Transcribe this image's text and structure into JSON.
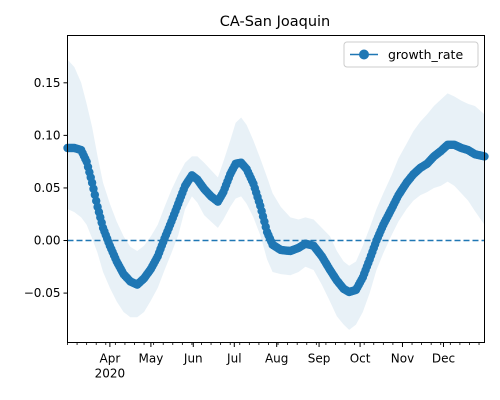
{
  "chart_data": {
    "type": "line",
    "title": "CA-San Joaquin",
    "xlabel": "",
    "ylabel": "",
    "x_range": [
      "2020-03-01",
      "2020-12-31"
    ],
    "ylim": [
      -0.097,
      0.195
    ],
    "y_ticks": [
      -0.05,
      0.0,
      0.05,
      0.1,
      0.15
    ],
    "y_tick_labels": [
      "−0.05",
      "0.00",
      "0.05",
      "0.10",
      "0.15"
    ],
    "x_ticks": [
      {
        "date": "2020-04-01",
        "label": "Apr",
        "sublabel": "2020"
      },
      {
        "date": "2020-05-01",
        "label": "May",
        "sublabel": ""
      },
      {
        "date": "2020-06-01",
        "label": "Jun",
        "sublabel": ""
      },
      {
        "date": "2020-07-01",
        "label": "Jul",
        "sublabel": ""
      },
      {
        "date": "2020-08-01",
        "label": "Aug",
        "sublabel": ""
      },
      {
        "date": "2020-09-01",
        "label": "Sep",
        "sublabel": ""
      },
      {
        "date": "2020-10-01",
        "label": "Oct",
        "sublabel": ""
      },
      {
        "date": "2020-11-01",
        "label": "Nov",
        "sublabel": ""
      },
      {
        "date": "2020-12-01",
        "label": "Dec",
        "sublabel": ""
      }
    ],
    "reference_line": {
      "y": 0,
      "style": "dashed"
    },
    "legend": {
      "position": "upper right",
      "entries": [
        "growth_rate"
      ]
    },
    "grid": false,
    "series": [
      {
        "name": "growth_rate",
        "color": "#1f77b4",
        "marker": "circle",
        "points": [
          {
            "x": "2020-03-01",
            "y": 0.088,
            "lo": 0.03,
            "hi": 0.172
          },
          {
            "x": "2020-03-06",
            "y": 0.088,
            "lo": 0.027,
            "hi": 0.165
          },
          {
            "x": "2020-03-11",
            "y": 0.086,
            "lo": 0.022,
            "hi": 0.15
          },
          {
            "x": "2020-03-15",
            "y": 0.075,
            "lo": 0.015,
            "hi": 0.13
          },
          {
            "x": "2020-03-19",
            "y": 0.055,
            "lo": 0.002,
            "hi": 0.108
          },
          {
            "x": "2020-03-23",
            "y": 0.032,
            "lo": -0.012,
            "hi": 0.08
          },
          {
            "x": "2020-03-27",
            "y": 0.012,
            "lo": -0.03,
            "hi": 0.055
          },
          {
            "x": "2020-04-01",
            "y": -0.005,
            "lo": -0.045,
            "hi": 0.035
          },
          {
            "x": "2020-04-06",
            "y": -0.02,
            "lo": -0.058,
            "hi": 0.018
          },
          {
            "x": "2020-04-11",
            "y": -0.032,
            "lo": -0.068,
            "hi": 0.004
          },
          {
            "x": "2020-04-16",
            "y": -0.039,
            "lo": -0.073,
            "hi": -0.006
          },
          {
            "x": "2020-04-21",
            "y": -0.042,
            "lo": -0.073,
            "hi": -0.01
          },
          {
            "x": "2020-04-26",
            "y": -0.036,
            "lo": -0.068,
            "hi": -0.005
          },
          {
            "x": "2020-05-01",
            "y": -0.027,
            "lo": -0.057,
            "hi": 0.004
          },
          {
            "x": "2020-05-06",
            "y": -0.015,
            "lo": -0.045,
            "hi": 0.015
          },
          {
            "x": "2020-05-11",
            "y": 0.002,
            "lo": -0.028,
            "hi": 0.032
          },
          {
            "x": "2020-05-16",
            "y": 0.018,
            "lo": -0.012,
            "hi": 0.048
          },
          {
            "x": "2020-05-21",
            "y": 0.035,
            "lo": 0.005,
            "hi": 0.062
          },
          {
            "x": "2020-05-26",
            "y": 0.052,
            "lo": 0.03,
            "hi": 0.074
          },
          {
            "x": "2020-05-31",
            "y": 0.062,
            "lo": 0.042,
            "hi": 0.08
          },
          {
            "x": "2020-06-04",
            "y": 0.058,
            "lo": 0.036,
            "hi": 0.08
          },
          {
            "x": "2020-06-09",
            "y": 0.049,
            "lo": 0.024,
            "hi": 0.074
          },
          {
            "x": "2020-06-14",
            "y": 0.042,
            "lo": 0.018,
            "hi": 0.067
          },
          {
            "x": "2020-06-19",
            "y": 0.037,
            "lo": 0.012,
            "hi": 0.06
          },
          {
            "x": "2020-06-23",
            "y": 0.046,
            "lo": 0.02,
            "hi": 0.075
          },
          {
            "x": "2020-06-28",
            "y": 0.063,
            "lo": 0.032,
            "hi": 0.095
          },
          {
            "x": "2020-07-02",
            "y": 0.073,
            "lo": 0.04,
            "hi": 0.112
          },
          {
            "x": "2020-07-06",
            "y": 0.074,
            "lo": 0.042,
            "hi": 0.117
          },
          {
            "x": "2020-07-10",
            "y": 0.068,
            "lo": 0.035,
            "hi": 0.11
          },
          {
            "x": "2020-07-15",
            "y": 0.054,
            "lo": 0.022,
            "hi": 0.095
          },
          {
            "x": "2020-07-20",
            "y": 0.033,
            "lo": 0.005,
            "hi": 0.078
          },
          {
            "x": "2020-07-25",
            "y": 0.008,
            "lo": -0.018,
            "hi": 0.06
          },
          {
            "x": "2020-07-29",
            "y": -0.004,
            "lo": -0.03,
            "hi": 0.045
          },
          {
            "x": "2020-08-04",
            "y": -0.009,
            "lo": -0.032,
            "hi": 0.032
          },
          {
            "x": "2020-08-11",
            "y": -0.01,
            "lo": -0.033,
            "hi": 0.022
          },
          {
            "x": "2020-08-17",
            "y": -0.007,
            "lo": -0.03,
            "hi": 0.02
          },
          {
            "x": "2020-08-22",
            "y": -0.003,
            "lo": -0.025,
            "hi": 0.022
          },
          {
            "x": "2020-08-28",
            "y": -0.005,
            "lo": -0.028,
            "hi": 0.02
          },
          {
            "x": "2020-09-03",
            "y": -0.015,
            "lo": -0.042,
            "hi": 0.012
          },
          {
            "x": "2020-09-09",
            "y": -0.028,
            "lo": -0.058,
            "hi": 0.004
          },
          {
            "x": "2020-09-14",
            "y": -0.038,
            "lo": -0.072,
            "hi": -0.01
          },
          {
            "x": "2020-09-19",
            "y": -0.046,
            "lo": -0.08,
            "hi": -0.02
          },
          {
            "x": "2020-09-23",
            "y": -0.049,
            "lo": -0.085,
            "hi": -0.024
          },
          {
            "x": "2020-09-28",
            "y": -0.047,
            "lo": -0.08,
            "hi": -0.02
          },
          {
            "x": "2020-10-03",
            "y": -0.035,
            "lo": -0.068,
            "hi": -0.005
          },
          {
            "x": "2020-10-08",
            "y": -0.018,
            "lo": -0.05,
            "hi": 0.012
          },
          {
            "x": "2020-10-13",
            "y": 0.0,
            "lo": -0.028,
            "hi": 0.03
          },
          {
            "x": "2020-10-18",
            "y": 0.015,
            "lo": -0.012,
            "hi": 0.045
          },
          {
            "x": "2020-10-24",
            "y": 0.03,
            "lo": 0.005,
            "hi": 0.062
          },
          {
            "x": "2020-10-29",
            "y": 0.043,
            "lo": 0.018,
            "hi": 0.078
          },
          {
            "x": "2020-11-04",
            "y": 0.055,
            "lo": 0.03,
            "hi": 0.092
          },
          {
            "x": "2020-11-09",
            "y": 0.063,
            "lo": 0.038,
            "hi": 0.104
          },
          {
            "x": "2020-11-14",
            "y": 0.069,
            "lo": 0.043,
            "hi": 0.113
          },
          {
            "x": "2020-11-19",
            "y": 0.073,
            "lo": 0.046,
            "hi": 0.12
          },
          {
            "x": "2020-11-24",
            "y": 0.08,
            "lo": 0.05,
            "hi": 0.128
          },
          {
            "x": "2020-11-29",
            "y": 0.085,
            "lo": 0.052,
            "hi": 0.134
          },
          {
            "x": "2020-12-04",
            "y": 0.091,
            "lo": 0.056,
            "hi": 0.14
          },
          {
            "x": "2020-12-09",
            "y": 0.091,
            "lo": 0.052,
            "hi": 0.137
          },
          {
            "x": "2020-12-14",
            "y": 0.088,
            "lo": 0.045,
            "hi": 0.133
          },
          {
            "x": "2020-12-19",
            "y": 0.086,
            "lo": 0.038,
            "hi": 0.13
          },
          {
            "x": "2020-12-24",
            "y": 0.082,
            "lo": 0.028,
            "hi": 0.128
          },
          {
            "x": "2020-12-31",
            "y": 0.08,
            "lo": 0.015,
            "hi": 0.12
          }
        ]
      }
    ]
  }
}
